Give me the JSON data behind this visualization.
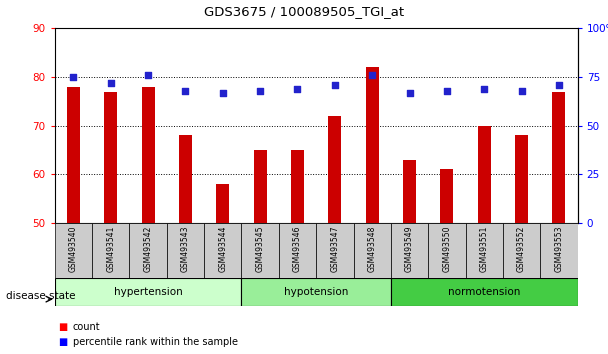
{
  "title": "GDS3675 / 100089505_TGI_at",
  "samples": [
    "GSM493540",
    "GSM493541",
    "GSM493542",
    "GSM493543",
    "GSM493544",
    "GSM493545",
    "GSM493546",
    "GSM493547",
    "GSM493548",
    "GSM493549",
    "GSM493550",
    "GSM493551",
    "GSM493552",
    "GSM493553"
  ],
  "counts": [
    78,
    77,
    78,
    68,
    58,
    65,
    65,
    72,
    82,
    63,
    61,
    70,
    68,
    77
  ],
  "percentiles": [
    75,
    72,
    76,
    68,
    67,
    68,
    69,
    71,
    76,
    67,
    68,
    69,
    68,
    71
  ],
  "ylim_left": [
    50,
    90
  ],
  "ylim_right": [
    0,
    100
  ],
  "yticks_left": [
    50,
    60,
    70,
    80,
    90
  ],
  "yticks_right": [
    0,
    25,
    50,
    75,
    100
  ],
  "ytick_labels_right": [
    "0",
    "25",
    "50",
    "75",
    "100%"
  ],
  "bar_color": "#cc0000",
  "dot_color": "#2222cc",
  "groups": [
    {
      "label": "hypertension",
      "start": 0,
      "end": 4,
      "color": "#ccffcc"
    },
    {
      "label": "hypotension",
      "start": 5,
      "end": 8,
      "color": "#99ee99"
    },
    {
      "label": "normotension",
      "start": 9,
      "end": 13,
      "color": "#44cc44"
    }
  ],
  "disease_label": "disease state",
  "legend_count": "count",
  "legend_pct": "percentile rank within the sample",
  "tick_bg_color": "#cccccc",
  "bar_width": 0.35
}
